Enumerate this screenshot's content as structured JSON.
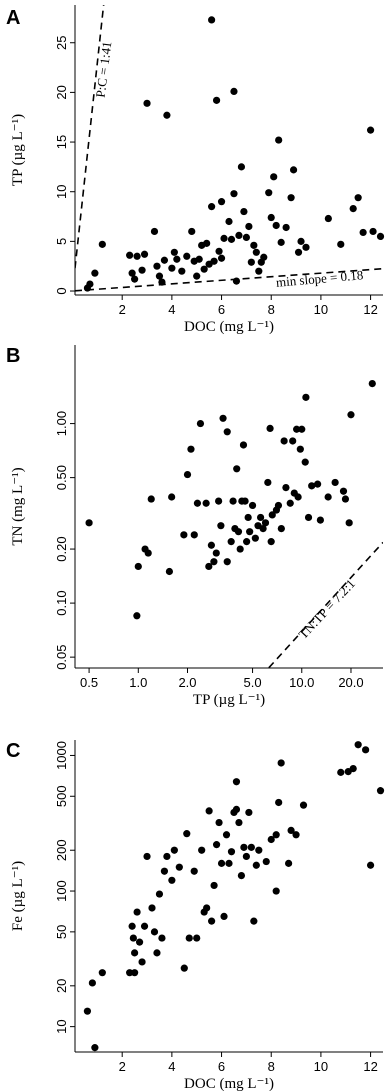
{
  "chart_data": [
    {
      "type": "scatter",
      "panel_label": "A",
      "xlabel": "DOC (mg L⁻¹)",
      "ylabel": "TP (µg L⁻¹)",
      "color": "#000000",
      "xlim": [
        0.1,
        12.5
      ],
      "ylim": [
        -0.4,
        28.8
      ],
      "xticks": [
        2,
        4,
        6,
        8,
        10,
        12
      ],
      "yticks": [
        0,
        5,
        10,
        15,
        20,
        25
      ],
      "reference_lines": [
        {
          "label": "P:C = 1:41",
          "slope": 23
        },
        {
          "label": "min slope = 0.18",
          "slope": 0.18
        }
      ],
      "x": [
        0.6,
        0.7,
        0.9,
        1.2,
        2.3,
        2.4,
        2.5,
        2.6,
        2.8,
        2.9,
        3.0,
        3.3,
        3.4,
        3.5,
        3.6,
        3.7,
        3.8,
        4.0,
        4.2,
        4.4,
        4.6,
        4.8,
        4.9,
        5.0,
        5.1,
        5.3,
        5.4,
        5.5,
        5.6,
        5.6,
        5.7,
        5.8,
        5.9,
        6.0,
        6.0,
        6.1,
        6.3,
        6.5,
        6.5,
        6.6,
        6.7,
        6.8,
        6.9,
        7.0,
        7.1,
        7.2,
        7.3,
        7.4,
        7.5,
        7.6,
        7.9,
        8.0,
        8.1,
        8.2,
        8.3,
        8.6,
        8.8,
        8.9,
        9.1,
        9.2,
        9.4,
        10.3,
        10.8,
        11.3,
        11.5,
        11.7,
        12.0,
        12.1,
        12.4,
        7.7,
        6.4,
        8.4,
        4.1,
        5.2
      ],
      "values": [
        0.3,
        0.7,
        1.8,
        4.7,
        3.6,
        1.8,
        1.2,
        3.5,
        2.1,
        3.7,
        18.9,
        6.0,
        2.5,
        1.5,
        0.9,
        3.1,
        17.7,
        2.3,
        3.2,
        2.0,
        3.5,
        6.0,
        3.0,
        1.5,
        3.2,
        2.2,
        4.8,
        2.7,
        27.3,
        8.5,
        3.0,
        19.2,
        4.0,
        3.3,
        9.0,
        5.3,
        7.0,
        20.1,
        9.8,
        1.0,
        5.6,
        12.5,
        8.0,
        5.4,
        6.5,
        2.9,
        4.6,
        3.9,
        2.0,
        2.9,
        9.9,
        7.4,
        11.5,
        6.6,
        15.2,
        6.4,
        9.4,
        12.2,
        3.9,
        5.0,
        4.4,
        7.3,
        4.7,
        8.3,
        9.4,
        5.9,
        16.2,
        6.0,
        5.5,
        3.4,
        5.2,
        4.9,
        3.9,
        4.6
      ]
    },
    {
      "type": "scatter",
      "panel_label": "B",
      "xlabel": "TP (µg L⁻¹)",
      "ylabel": "TN (mg L⁻¹)",
      "color": "#000000",
      "xscale": "log",
      "yscale": "log",
      "xlim": [
        0.41,
        31.4
      ],
      "ylim": [
        0.0435,
        2.74
      ],
      "xticks": [
        0.5,
        {
          "value": 1,
          "label": "1.0"
        },
        {
          "value": 2,
          "label": "2.0"
        },
        {
          "value": 5,
          "label": "5.0"
        },
        {
          "value": 10,
          "label": "10.0"
        },
        {
          "value": 20,
          "label": "20.0"
        }
      ],
      "yticks": [
        0.05,
        {
          "value": 0.1,
          "label": "0.10"
        },
        {
          "value": 0.2,
          "label": "0.20"
        },
        {
          "value": 0.5,
          "label": "0.50"
        },
        {
          "value": 1,
          "label": "1.00"
        }
      ],
      "reference_lines": [
        {
          "label": "TN:TP = 7.2:1",
          "slope": 0.00694
        }
      ],
      "x": [
        0.5,
        0.98,
        1.0,
        1.1,
        1.15,
        1.2,
        1.55,
        1.6,
        1.9,
        2.0,
        2.1,
        2.2,
        2.3,
        2.4,
        2.6,
        2.7,
        2.8,
        2.9,
        3.0,
        3.1,
        3.2,
        3.3,
        3.5,
        3.5,
        3.7,
        3.8,
        3.9,
        4.0,
        4.1,
        4.2,
        4.3,
        4.4,
        4.5,
        4.6,
        4.7,
        4.8,
        5.0,
        5.2,
        5.4,
        5.6,
        5.8,
        6.0,
        6.2,
        6.4,
        6.5,
        6.6,
        7.0,
        7.5,
        7.8,
        8.0,
        8.5,
        8.8,
        9.0,
        9.3,
        9.5,
        10.0,
        10.5,
        10.6,
        11.0,
        11.5,
        12.5,
        13.0,
        14.5,
        16.0,
        18.0,
        18.5,
        19.5,
        20.0,
        27.0,
        9.8,
        7.2
      ],
      "values": [
        0.28,
        0.085,
        0.16,
        0.2,
        0.19,
        0.38,
        0.15,
        0.39,
        0.24,
        0.52,
        0.72,
        0.24,
        0.36,
        1.0,
        0.36,
        0.16,
        0.21,
        0.17,
        0.19,
        0.37,
        0.27,
        1.07,
        0.9,
        0.17,
        0.22,
        0.37,
        0.26,
        0.56,
        0.25,
        0.2,
        0.37,
        0.76,
        0.37,
        0.22,
        0.3,
        0.25,
        0.35,
        0.23,
        0.27,
        0.3,
        0.26,
        0.28,
        0.47,
        0.94,
        0.22,
        0.31,
        0.33,
        0.26,
        0.8,
        0.44,
        0.36,
        0.8,
        0.41,
        0.93,
        0.39,
        0.93,
        0.61,
        1.4,
        0.3,
        0.45,
        0.46,
        0.29,
        0.39,
        0.47,
        0.42,
        0.38,
        0.28,
        1.12,
        1.67,
        0.72,
        0.35
      ]
    },
    {
      "type": "scatter",
      "panel_label": "C",
      "xlabel": "DOC (mg L⁻¹)",
      "ylabel": "Fe (µg L⁻¹)",
      "color": "#000000",
      "yscale": "log",
      "xlim": [
        0.1,
        12.5
      ],
      "ylim": [
        6.5,
        1300
      ],
      "xticks": [
        2,
        4,
        6,
        8,
        10,
        12
      ],
      "yticks": [
        10,
        20,
        50,
        100,
        200,
        500,
        1000
      ],
      "x": [
        0.6,
        0.8,
        0.9,
        1.2,
        2.3,
        2.4,
        2.45,
        2.5,
        2.5,
        2.6,
        2.7,
        2.8,
        2.9,
        3.0,
        3.2,
        3.3,
        3.4,
        3.5,
        3.6,
        3.7,
        3.8,
        4.0,
        4.1,
        4.3,
        4.5,
        4.6,
        4.7,
        4.9,
        5.0,
        5.2,
        5.3,
        5.4,
        5.5,
        5.6,
        5.7,
        5.8,
        5.9,
        6.0,
        6.1,
        6.2,
        6.3,
        6.4,
        6.5,
        6.6,
        6.7,
        6.8,
        6.9,
        7.0,
        7.1,
        7.2,
        7.3,
        7.4,
        7.5,
        7.8,
        8.0,
        8.2,
        8.3,
        8.4,
        8.7,
        8.8,
        9.0,
        9.3,
        10.8,
        11.1,
        11.3,
        11.5,
        11.8,
        12.0,
        12.4,
        6.6,
        8.2
      ],
      "values": [
        13,
        21,
        7,
        25,
        25,
        55,
        45,
        35,
        25,
        70,
        42,
        30,
        55,
        180,
        75,
        50,
        35,
        95,
        45,
        140,
        180,
        120,
        200,
        150,
        27,
        265,
        45,
        140,
        45,
        200,
        70,
        75,
        390,
        60,
        110,
        220,
        320,
        160,
        65,
        260,
        160,
        195,
        380,
        640,
        320,
        130,
        210,
        180,
        380,
        210,
        60,
        155,
        200,
        165,
        240,
        100,
        450,
        880,
        160,
        280,
        260,
        430,
        750,
        760,
        800,
        1200,
        1100,
        155,
        550,
        400,
        260
      ]
    }
  ]
}
